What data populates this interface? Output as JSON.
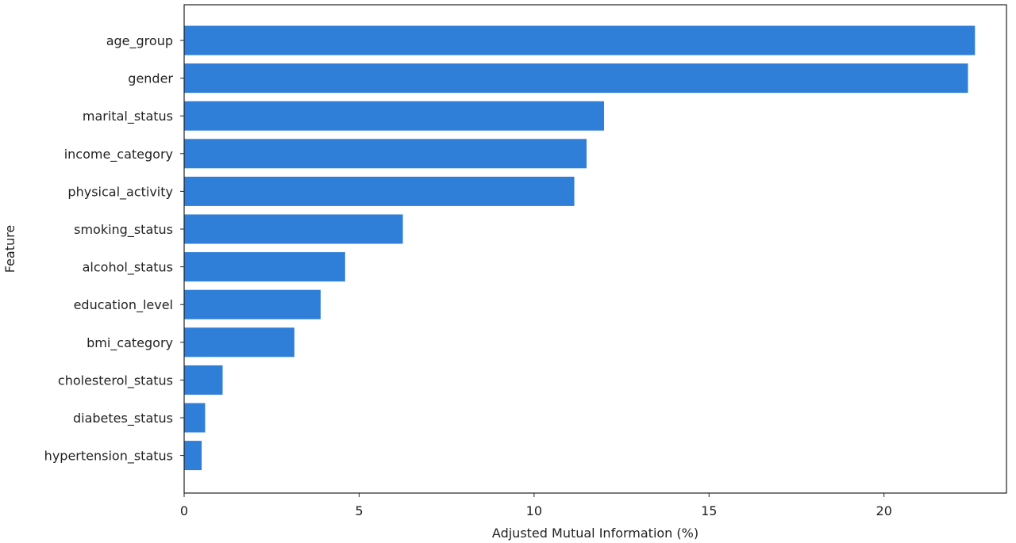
{
  "chart_data": {
    "type": "bar",
    "orientation": "horizontal",
    "title": "",
    "xlabel": "Adjusted Mutual Information (%)",
    "ylabel": "Feature",
    "xlim": [
      0,
      23.5
    ],
    "xticks": [
      0,
      5,
      10,
      15,
      20
    ],
    "grid": false,
    "bar_color": "#2f7ed8",
    "categories": [
      "age_group",
      "gender",
      "marital_status",
      "income_category",
      "physical_activity",
      "smoking_status",
      "alcohol_status",
      "education_level",
      "bmi_category",
      "cholesterol_status",
      "diabetes_status",
      "hypertension_status"
    ],
    "values": [
      22.6,
      22.4,
      12.0,
      11.5,
      11.15,
      6.25,
      4.6,
      3.9,
      3.15,
      1.1,
      0.6,
      0.5
    ]
  }
}
